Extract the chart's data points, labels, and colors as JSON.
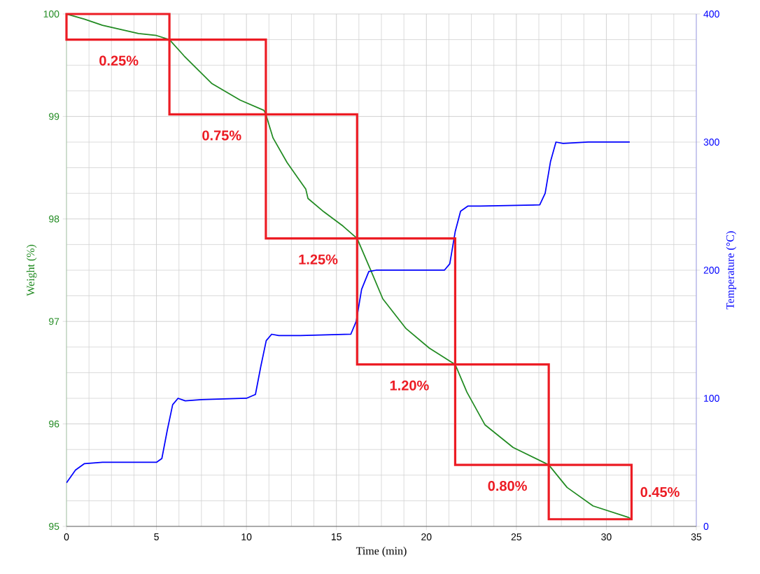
{
  "chart_data": {
    "type": "line",
    "xlabel": "Time (min)",
    "ylabel": "Weight (%)",
    "y2label": "Temperature (°C)",
    "xlim": [
      0,
      35
    ],
    "xticks": [
      0,
      5,
      10,
      15,
      20,
      25,
      30,
      35
    ],
    "ylim": [
      95,
      100
    ],
    "yticks": [
      95,
      96,
      97,
      98,
      99,
      100
    ],
    "y2lim": [
      0,
      400
    ],
    "y2ticks": [
      0,
      100,
      200,
      300,
      400
    ],
    "grid": true,
    "series": [
      {
        "color": "#228b22",
        "x": [
          0,
          1,
          2,
          3,
          4,
          5,
          5.72,
          6.54,
          8.09,
          9.65,
          10.97,
          11.08,
          11.48,
          12.26,
          13.3,
          13.42,
          14.3,
          15.37,
          16.15,
          16.93,
          17.58,
          18.87,
          20.16,
          21.6,
          22.25,
          23.26,
          24.82,
          26.8,
          27.82,
          29.26,
          31.2,
          31.4
        ],
        "values": [
          100,
          99.95,
          99.89,
          99.85,
          99.81,
          99.79,
          99.75,
          99.59,
          99.32,
          99.16,
          99.06,
          99.02,
          98.79,
          98.55,
          98.29,
          98.2,
          98.07,
          97.93,
          97.81,
          97.49,
          97.22,
          96.93,
          96.74,
          96.58,
          96.31,
          95.99,
          95.77,
          95.6,
          95.38,
          95.2,
          95.09,
          95.07
        ]
      },
      {
        "color": "#0000ff",
        "axis": "y2",
        "x": [
          0,
          0.5,
          1,
          2,
          5,
          5.3,
          5.6,
          5.9,
          6.2,
          6.6,
          7.5,
          10,
          10.5,
          10.8,
          11.1,
          11.4,
          11.8,
          13,
          15.8,
          16.1,
          16.4,
          16.8,
          17.2,
          18,
          21,
          21.3,
          21.6,
          21.9,
          22.3,
          23,
          26.3,
          26.6,
          26.9,
          27.2,
          27.6,
          29,
          31.3
        ],
        "values": [
          34,
          44,
          49,
          50,
          50,
          53,
          75,
          95,
          100,
          98,
          99,
          100,
          103,
          125,
          145,
          150,
          149,
          149,
          150,
          160,
          185,
          199,
          200,
          200,
          200,
          205,
          230,
          246,
          250,
          250,
          251,
          260,
          285,
          300,
          299,
          300,
          300
        ]
      }
    ],
    "annotations": [
      {
        "text": "0.25%",
        "x": 5.72,
        "y": 99.75
      },
      {
        "text": "0.75%",
        "x": 11.08,
        "y": 99.02
      },
      {
        "text": "1.25%",
        "x": 16.15,
        "y": 97.81
      },
      {
        "text": "1.20%",
        "x": 21.6,
        "y": 96.58
      },
      {
        "text": "0.80%",
        "x": 26.8,
        "y": 95.6
      },
      {
        "text": "0.45%",
        "x": 31.4,
        "y": 95.07
      }
    ]
  }
}
